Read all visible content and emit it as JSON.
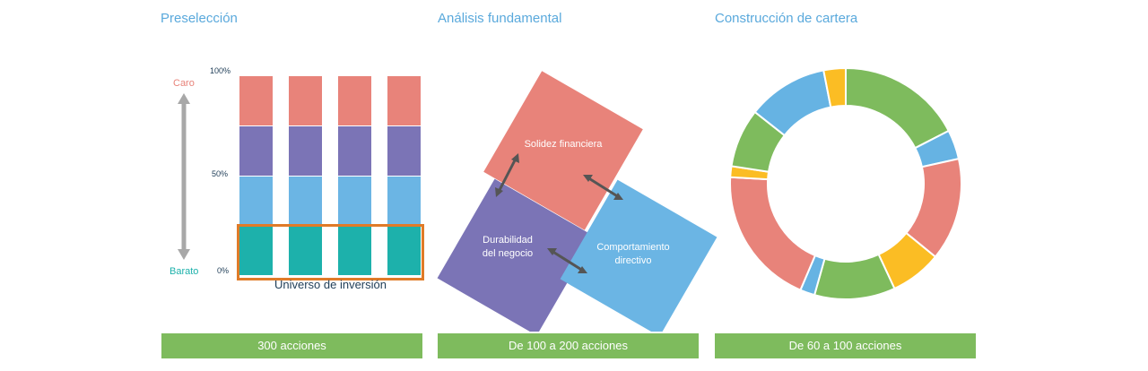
{
  "panels": [
    {
      "title": "Preselección",
      "footer": "300 acciones"
    },
    {
      "title": "Análisis fundamental",
      "footer": "De 100 a 200 acciones"
    },
    {
      "title": "Construcción de cartera",
      "footer": "De 60 a 100 acciones"
    }
  ],
  "preseleccion": {
    "top_label": "Caro",
    "bottom_label": "Barato",
    "ticks": [
      "100%",
      "50%",
      "0%"
    ],
    "universe_label": "Universo de inversión",
    "bar_count": 4,
    "segment_colors": [
      "#e8837a",
      "#7b74b6",
      "#6bb5e4",
      "#1db1ab"
    ],
    "highlight_color": "#e07b28"
  },
  "analisis": {
    "boxes": [
      {
        "label_lines": [
          "Solidez financiera"
        ],
        "color": "#e8837a"
      },
      {
        "label_lines": [
          "Durabilidad",
          "del negocio"
        ],
        "color": "#7b74b6"
      },
      {
        "label_lines": [
          "Comportamiento",
          "directivo"
        ],
        "color": "#6bb5e4"
      }
    ]
  },
  "cartera": {
    "colors": {
      "green": "#7ebb5d",
      "blue": "#66b3e3",
      "red": "#e8837a",
      "yellow": "#fbbd24"
    },
    "slices": [
      {
        "color": "green",
        "value": 17
      },
      {
        "color": "blue",
        "value": 4
      },
      {
        "color": "red",
        "value": 14
      },
      {
        "color": "yellow",
        "value": 7
      },
      {
        "color": "green",
        "value": 11
      },
      {
        "color": "blue",
        "value": 2
      },
      {
        "color": "red",
        "value": 19
      },
      {
        "color": "yellow",
        "value": 1.5
      },
      {
        "color": "green",
        "value": 8
      },
      {
        "color": "blue",
        "value": 11
      },
      {
        "color": "yellow",
        "value": 3
      }
    ]
  }
}
